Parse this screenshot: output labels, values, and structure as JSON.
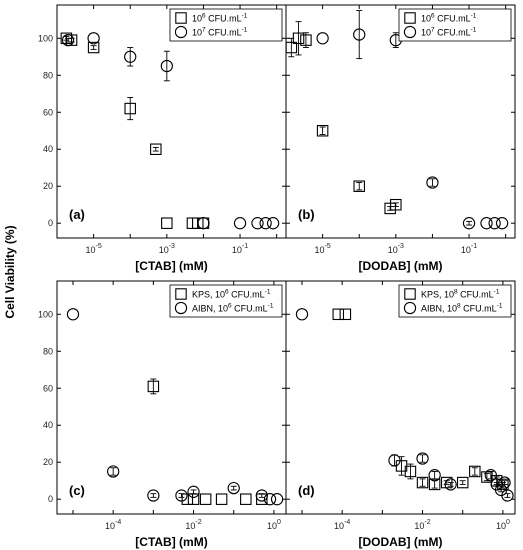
{
  "figure": {
    "ylabel": "Cell Viability (%)"
  },
  "chart_data": [
    {
      "type": "scatter",
      "panel_label": "(a)",
      "xlabel": "[CTAB] (mM)",
      "xscale": "log",
      "xlim": [
        1e-06,
        1.8
      ],
      "ylim": [
        -8,
        118
      ],
      "xticks": [
        1e-05,
        0.001,
        0.1
      ],
      "xtick_labels": [
        {
          "base": "10",
          "exp": "-5"
        },
        {
          "base": "10",
          "exp": "-3"
        },
        {
          "base": "10",
          "exp": "-1"
        }
      ],
      "yticks": [
        0,
        20,
        40,
        60,
        80,
        100
      ],
      "show_yticklabels": true,
      "legend_position": "top-right",
      "series": [
        {
          "name": {
            "pre": "10",
            "sup": "6",
            "post": " CFU.mL",
            "sup2": "-1"
          },
          "marker": "square",
          "x": [
            1.8e-06,
            2.5e-06,
            1e-05,
            0.0001,
            0.0005,
            0.001,
            0.005,
            0.007,
            0.01
          ],
          "y": [
            100,
            99,
            95,
            62,
            40,
            0,
            0,
            0,
            0
          ],
          "err": [
            1,
            1,
            1,
            6,
            1,
            0,
            0,
            0,
            0
          ]
        },
        {
          "name": {
            "pre": "10",
            "sup": "7",
            "post": " CFU.mL",
            "sup2": "-1"
          },
          "marker": "circle",
          "x": [
            2e-06,
            1e-05,
            0.0001,
            0.001,
            0.01,
            0.1,
            0.3,
            0.5,
            0.8
          ],
          "y": [
            99,
            100,
            90,
            85,
            0,
            0,
            0,
            0,
            0
          ],
          "err": [
            1,
            0,
            5,
            8,
            0,
            0,
            0,
            0,
            0
          ]
        }
      ]
    },
    {
      "type": "scatter",
      "panel_label": "(b)",
      "xlabel": "[DODAB] (mM)",
      "xscale": "log",
      "xlim": [
        1e-06,
        1.8
      ],
      "ylim": [
        -8,
        118
      ],
      "xticks": [
        1e-05,
        0.001,
        0.1
      ],
      "xtick_labels": [
        {
          "base": "10",
          "exp": "-5"
        },
        {
          "base": "10",
          "exp": "-3"
        },
        {
          "base": "10",
          "exp": "-1"
        }
      ],
      "yticks": [
        0,
        20,
        40,
        60,
        80,
        100
      ],
      "show_yticklabels": false,
      "legend_position": "top-right",
      "series": [
        {
          "name": {
            "pre": "10",
            "sup": "6",
            "post": " CFU.mL",
            "sup2": "-1"
          },
          "marker": "square",
          "x": [
            1.4e-06,
            2.2e-06,
            3.5e-06,
            1e-05,
            0.0001,
            0.0007,
            0.001
          ],
          "y": [
            95,
            100,
            99,
            50,
            20,
            8,
            10
          ],
          "err": [
            5,
            9,
            4,
            2,
            2,
            1,
            1
          ]
        },
        {
          "name": {
            "pre": "10",
            "sup": "7",
            "post": " CFU.mL",
            "sup2": "-1"
          },
          "marker": "circle",
          "x": [
            1e-05,
            0.0001,
            0.001,
            0.01,
            0.1,
            0.3,
            0.5,
            0.8
          ],
          "y": [
            100,
            102,
            99,
            22,
            0,
            0,
            0,
            0
          ],
          "err": [
            0,
            13,
            4,
            2,
            1,
            0,
            0,
            0
          ]
        }
      ]
    },
    {
      "type": "scatter",
      "panel_label": "(c)",
      "xlabel": "[CTAB] (mM)",
      "xscale": "log",
      "xlim": [
        4e-06,
        2
      ],
      "ylim": [
        -8,
        118
      ],
      "xticks": [
        0.0001,
        0.01,
        1
      ],
      "xtick_labels": [
        {
          "base": "10",
          "exp": "-4"
        },
        {
          "base": "10",
          "exp": "-2"
        },
        {
          "base": "10",
          "exp": "0"
        }
      ],
      "yticks": [
        0,
        20,
        40,
        60,
        80,
        100
      ],
      "show_yticklabels": true,
      "legend_position": "top-right",
      "series": [
        {
          "name": {
            "pre": "KPS, 10",
            "sup": "6",
            "post": " CFU.mL",
            "sup2": "-1"
          },
          "marker": "square",
          "x": [
            0.001,
            0.007,
            0.01,
            0.02,
            0.05,
            0.2,
            0.5
          ],
          "y": [
            61,
            0,
            0,
            0,
            0,
            0,
            0
          ],
          "err": [
            4,
            0,
            0,
            0,
            0,
            0,
            0
          ]
        },
        {
          "name": {
            "pre": "AIBN, 10",
            "sup": "6",
            "post": " CFU.mL",
            "sup2": "-1"
          },
          "marker": "circle",
          "x": [
            1e-05,
            0.0001,
            0.001,
            0.005,
            0.01,
            0.1,
            0.5,
            0.8,
            1.2
          ],
          "y": [
            100,
            15,
            2,
            2,
            4,
            6,
            2,
            0,
            0
          ],
          "err": [
            0,
            2,
            1,
            1,
            1,
            1,
            1,
            0,
            0
          ]
        }
      ]
    },
    {
      "type": "scatter",
      "panel_label": "(d)",
      "xlabel": "[DODAB] (mM)",
      "xscale": "log",
      "xlim": [
        4e-06,
        2
      ],
      "ylim": [
        -8,
        118
      ],
      "xticks": [
        0.0001,
        0.01,
        1
      ],
      "xtick_labels": [
        {
          "base": "10",
          "exp": "-4"
        },
        {
          "base": "10",
          "exp": "-2"
        },
        {
          "base": "10",
          "exp": "0"
        }
      ],
      "yticks": [
        0,
        20,
        40,
        60,
        80,
        100
      ],
      "show_yticklabels": false,
      "legend_position": "top-right",
      "series": [
        {
          "name": {
            "pre": "KPS, 10",
            "sup": "8",
            "post": " CFU.mL",
            "sup2": "-1"
          },
          "marker": "square",
          "x": [
            8e-05,
            0.00012,
            0.003,
            0.005,
            0.01,
            0.02,
            0.04,
            0.1,
            0.2,
            0.4,
            0.7,
            1.0
          ],
          "y": [
            100,
            100,
            18,
            15,
            9,
            8,
            9,
            9,
            15,
            12,
            10,
            8
          ],
          "err": [
            0,
            0,
            5,
            4,
            2,
            2,
            1,
            1,
            2,
            2,
            2,
            1
          ]
        },
        {
          "name": {
            "pre": "AIBN, 10",
            "sup": "8",
            "post": " CFU.mL",
            "sup2": "-1"
          },
          "marker": "circle",
          "x": [
            1e-05,
            0.002,
            0.01,
            0.02,
            0.05,
            0.5,
            0.7,
            0.9,
            1.1,
            1.3
          ],
          "y": [
            100,
            21,
            22,
            13,
            8,
            13,
            8,
            5,
            9,
            2
          ],
          "err": [
            0,
            3,
            2,
            2,
            1,
            2,
            1,
            1,
            1,
            1
          ]
        }
      ]
    }
  ]
}
